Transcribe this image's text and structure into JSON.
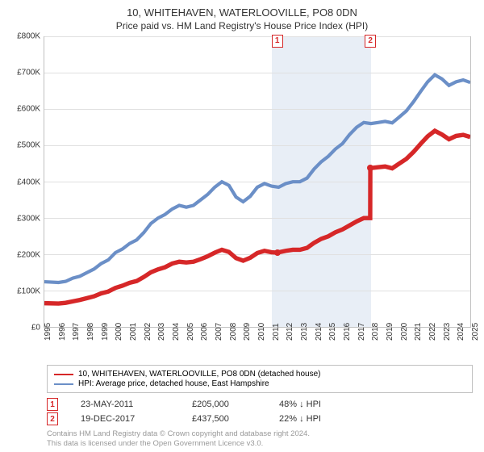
{
  "title": "10, WHITEHAVEN, WATERLOOVILLE, PO8 0DN",
  "subtitle": "Price paid vs. HM Land Registry's House Price Index (HPI)",
  "chart": {
    "type": "line",
    "ylim": [
      0,
      800000
    ],
    "ytick_step": 100000,
    "yticks": [
      "£0",
      "£100K",
      "£200K",
      "£300K",
      "£400K",
      "£500K",
      "£600K",
      "£700K",
      "£800K"
    ],
    "xlim": [
      1995,
      2025
    ],
    "xticks": [
      1995,
      1996,
      1997,
      1998,
      1999,
      2000,
      2001,
      2002,
      2003,
      2004,
      2005,
      2006,
      2007,
      2008,
      2009,
      2010,
      2011,
      2012,
      2013,
      2014,
      2015,
      2016,
      2017,
      2018,
      2019,
      2020,
      2021,
      2022,
      2023,
      2024,
      2025
    ],
    "background_color": "#ffffff",
    "grid_color": "#e0e0e0",
    "axis_color": "#c0c0c0",
    "label_fontsize": 10,
    "shaded_band": {
      "start": 2011,
      "end": 2018,
      "color": "#e8eef6"
    },
    "series": [
      {
        "name": "HPI: Average price, detached house, East Hampshire",
        "color": "#6b8fc7",
        "line_width": 1.4,
        "points": [
          [
            1995,
            125000
          ],
          [
            1996,
            123000
          ],
          [
            1996.5,
            126000
          ],
          [
            1997,
            135000
          ],
          [
            1997.5,
            140000
          ],
          [
            1998,
            150000
          ],
          [
            1998.5,
            160000
          ],
          [
            1999,
            175000
          ],
          [
            1999.5,
            185000
          ],
          [
            2000,
            205000
          ],
          [
            2000.5,
            215000
          ],
          [
            2001,
            230000
          ],
          [
            2001.5,
            240000
          ],
          [
            2002,
            260000
          ],
          [
            2002.5,
            285000
          ],
          [
            2003,
            300000
          ],
          [
            2003.5,
            310000
          ],
          [
            2004,
            325000
          ],
          [
            2004.5,
            335000
          ],
          [
            2005,
            330000
          ],
          [
            2005.5,
            335000
          ],
          [
            2006,
            350000
          ],
          [
            2006.5,
            365000
          ],
          [
            2007,
            385000
          ],
          [
            2007.5,
            400000
          ],
          [
            2008,
            390000
          ],
          [
            2008.5,
            358000
          ],
          [
            2009,
            345000
          ],
          [
            2009.5,
            360000
          ],
          [
            2010,
            385000
          ],
          [
            2010.5,
            395000
          ],
          [
            2011,
            388000
          ],
          [
            2011.5,
            385000
          ],
          [
            2012,
            395000
          ],
          [
            2012.5,
            400000
          ],
          [
            2013,
            400000
          ],
          [
            2013.5,
            410000
          ],
          [
            2014,
            435000
          ],
          [
            2014.5,
            455000
          ],
          [
            2015,
            470000
          ],
          [
            2015.5,
            490000
          ],
          [
            2016,
            505000
          ],
          [
            2016.5,
            530000
          ],
          [
            2017,
            550000
          ],
          [
            2017.5,
            563000
          ],
          [
            2018,
            560000
          ],
          [
            2018.5,
            563000
          ],
          [
            2019,
            566000
          ],
          [
            2019.5,
            562000
          ],
          [
            2020,
            578000
          ],
          [
            2020.5,
            595000
          ],
          [
            2021,
            620000
          ],
          [
            2021.5,
            648000
          ],
          [
            2022,
            675000
          ],
          [
            2022.5,
            694000
          ],
          [
            2023,
            683000
          ],
          [
            2023.5,
            665000
          ],
          [
            2024,
            675000
          ],
          [
            2024.5,
            680000
          ],
          [
            2025,
            673000
          ]
        ]
      },
      {
        "name": "10, WHITEHAVEN, WATERLOOVILLE, PO8 0DN (detached house)",
        "color": "#d62728",
        "line_width": 1.8,
        "points": [
          [
            1995,
            66000
          ],
          [
            1996,
            65000
          ],
          [
            1996.5,
            67000
          ],
          [
            1997,
            71000
          ],
          [
            1997.5,
            75000
          ],
          [
            1998,
            80000
          ],
          [
            1998.5,
            85000
          ],
          [
            1999,
            93000
          ],
          [
            1999.5,
            98000
          ],
          [
            2000,
            108000
          ],
          [
            2000.5,
            114000
          ],
          [
            2001,
            122000
          ],
          [
            2001.5,
            127000
          ],
          [
            2002,
            138000
          ],
          [
            2002.5,
            151000
          ],
          [
            2003,
            159000
          ],
          [
            2003.5,
            165000
          ],
          [
            2004,
            175000
          ],
          [
            2004.5,
            180000
          ],
          [
            2005,
            178000
          ],
          [
            2005.5,
            180000
          ],
          [
            2006,
            187000
          ],
          [
            2006.5,
            195000
          ],
          [
            2007,
            205000
          ],
          [
            2007.5,
            213000
          ],
          [
            2008,
            207000
          ],
          [
            2008.5,
            190000
          ],
          [
            2009,
            183000
          ],
          [
            2009.5,
            191000
          ],
          [
            2010,
            204000
          ],
          [
            2010.5,
            210000
          ],
          [
            2011,
            206000
          ],
          [
            2011.4,
            205000
          ],
          [
            2012,
            210000
          ],
          [
            2012.5,
            213000
          ],
          [
            2013,
            213000
          ],
          [
            2013.5,
            218000
          ],
          [
            2014,
            232000
          ],
          [
            2014.5,
            243000
          ],
          [
            2015,
            250000
          ],
          [
            2015.5,
            261000
          ],
          [
            2016,
            269000
          ],
          [
            2016.5,
            280000
          ],
          [
            2017,
            291000
          ],
          [
            2017.5,
            300000
          ],
          [
            2017.95,
            300000
          ],
          [
            2017.96,
            437500
          ],
          [
            2018.5,
            440000
          ],
          [
            2019,
            442000
          ],
          [
            2019.5,
            437000
          ],
          [
            2020,
            450000
          ],
          [
            2020.5,
            463000
          ],
          [
            2021,
            482000
          ],
          [
            2021.5,
            504000
          ],
          [
            2022,
            525000
          ],
          [
            2022.5,
            540000
          ],
          [
            2023,
            530000
          ],
          [
            2023.5,
            517000
          ],
          [
            2024,
            526000
          ],
          [
            2024.5,
            529000
          ],
          [
            2025,
            523000
          ]
        ]
      }
    ],
    "markers": [
      {
        "label": "1",
        "x": 2011.4,
        "y": 205000,
        "color": "#d62728"
      },
      {
        "label": "2",
        "x": 2017.96,
        "y": 437500,
        "color": "#d62728"
      }
    ]
  },
  "legend": {
    "border_color": "#c0c0c0",
    "rows": [
      {
        "label": "10, WHITEHAVEN, WATERLOOVILLE, PO8 0DN (detached house)",
        "color": "#d62728"
      },
      {
        "label": "HPI: Average price, detached house, East Hampshire",
        "color": "#6b8fc7"
      }
    ]
  },
  "price_rows": [
    {
      "num": "1",
      "date": "23-MAY-2011",
      "price": "£205,000",
      "delta": "48% ↓ HPI"
    },
    {
      "num": "2",
      "date": "19-DEC-2017",
      "price": "£437,500",
      "delta": "22% ↓ HPI"
    }
  ],
  "footer": {
    "line1": "Contains HM Land Registry data © Crown copyright and database right 2024.",
    "line2": "This data is licensed under the Open Government Licence v3.0."
  }
}
